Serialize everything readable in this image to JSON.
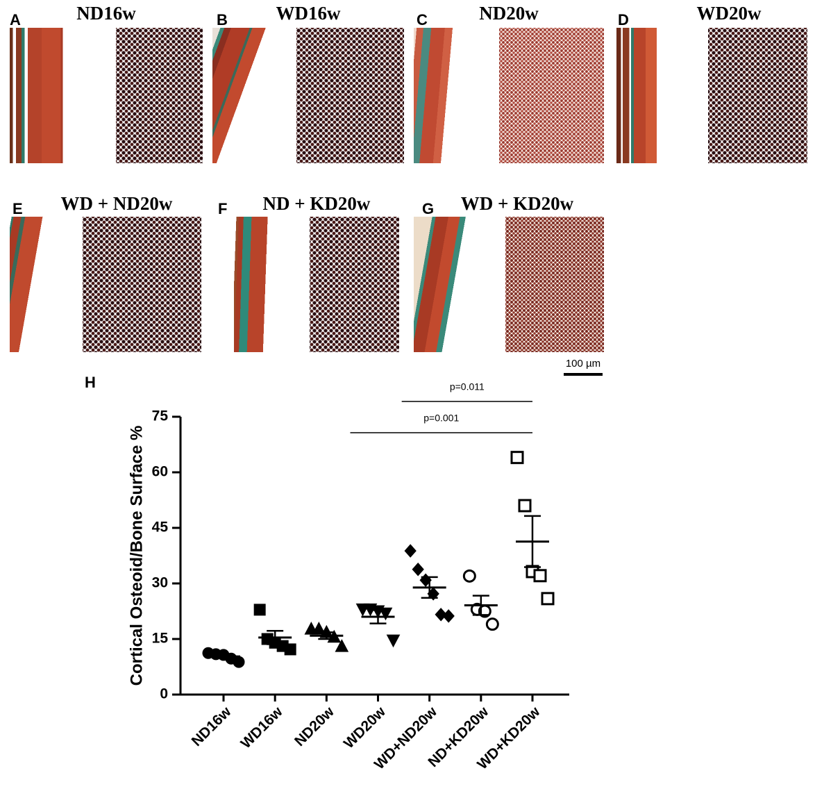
{
  "panels": [
    {
      "letter": "A",
      "title": "ND16w"
    },
    {
      "letter": "B",
      "title": "WD16w"
    },
    {
      "letter": "C",
      "title": "ND20w"
    },
    {
      "letter": "D",
      "title": "WD20w"
    },
    {
      "letter": "E",
      "title": "WD + ND20w"
    },
    {
      "letter": "F",
      "title": "ND + KD20w"
    },
    {
      "letter": "G",
      "title": "WD + KD20w"
    }
  ],
  "scale_bar": "100 µm",
  "chart_data": {
    "type": "dot",
    "panel": "H",
    "ylabel": "Cortical Osteoid/Bone Surface %",
    "ylim": [
      0,
      75
    ],
    "yticks": [
      0,
      15,
      30,
      45,
      60,
      75
    ],
    "categories": [
      "ND16w",
      "WD16w",
      "ND20w",
      "WD20w",
      "WD+ND20w",
      "ND+KD20w",
      "WD+KD20w"
    ],
    "color": "#000000",
    "groups": [
      {
        "marker": "circle",
        "filled": true,
        "values": [
          11.2,
          10.9,
          10.7,
          9.7,
          8.8
        ],
        "mean": 10.3,
        "sem": 0.5
      },
      {
        "marker": "square",
        "filled": true,
        "values": [
          22.9,
          15.0,
          14.0,
          13.1,
          12.2
        ],
        "mean": 15.4,
        "sem": 1.8
      },
      {
        "marker": "triangle",
        "filled": true,
        "values": [
          17.8,
          17.8,
          16.9,
          15.6,
          13.1
        ],
        "mean": 15.9,
        "sem": 0.9
      },
      {
        "marker": "triangle-down",
        "filled": true,
        "values": [
          23.0,
          23.0,
          22.5,
          21.9,
          14.6
        ],
        "mean": 21.0,
        "sem": 1.8
      },
      {
        "marker": "diamond",
        "filled": true,
        "values": [
          38.8,
          33.8,
          30.9,
          27.2,
          21.6,
          21.2
        ],
        "mean": 28.9,
        "sem": 2.8
      },
      {
        "marker": "circle",
        "filled": false,
        "values": [
          32.0,
          23.0,
          22.5,
          19.0
        ],
        "mean": 24.1,
        "sem": 2.6
      },
      {
        "marker": "square",
        "filled": false,
        "values": [
          64.0,
          51.0,
          33.2,
          32.1,
          25.9
        ],
        "mean": 41.3,
        "sem": 6.9
      }
    ],
    "comparisons": [
      {
        "label": "p=0.011",
        "groups": [
          "WD+ND20w",
          "WD+KD20w"
        ]
      },
      {
        "label": "p=0.001",
        "groups": [
          "WD20w",
          "WD+KD20w"
        ]
      }
    ]
  }
}
